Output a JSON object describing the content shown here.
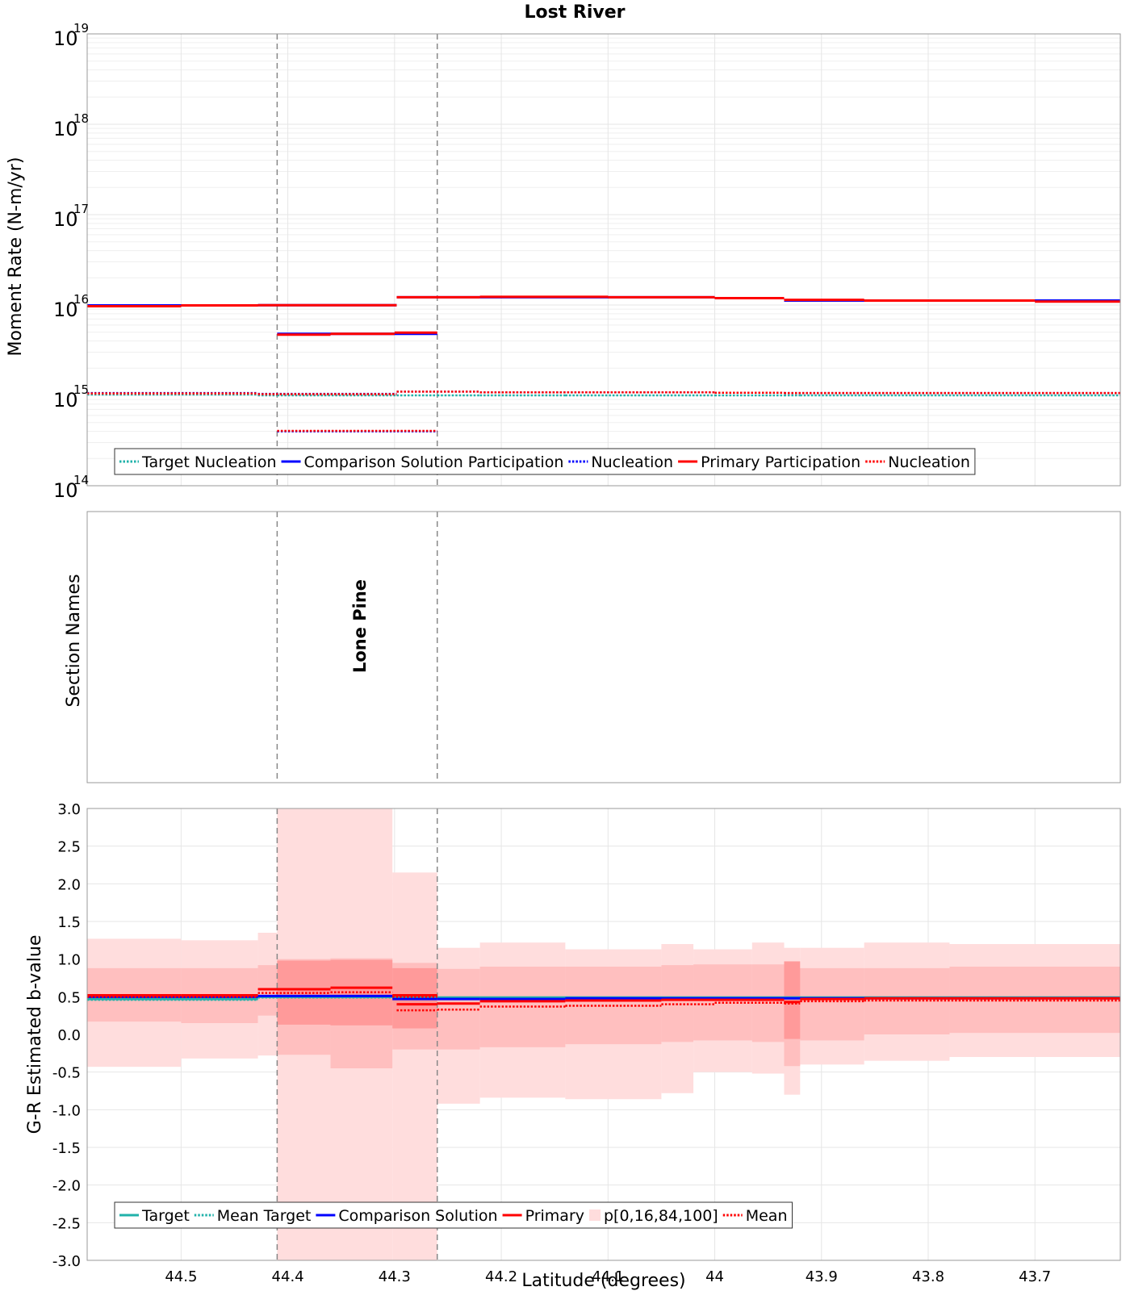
{
  "chart_data": [
    {
      "type": "line",
      "title": "Lost River",
      "ylabel": "Moment Rate (N-m/yr)",
      "xlabel": "",
      "yscale": "log",
      "ylim": [
        100000000000000.0,
        1e+19
      ],
      "xlim": [
        44.588,
        43.62
      ],
      "x_reversed": true,
      "grid": true,
      "legend_position": "bottom-left",
      "y_tick_labels": [
        {
          "base": "10",
          "exp": "19",
          "value": 1e+19
        },
        {
          "base": "10",
          "exp": "18",
          "value": 1e+18
        },
        {
          "base": "10",
          "exp": "17",
          "value": 1e+17
        },
        {
          "base": "10",
          "exp": "16",
          "value": 1e+16
        },
        {
          "base": "10",
          "exp": "15",
          "value": 1000000000000000.0
        },
        {
          "base": "10",
          "exp": "14",
          "value": 100000000000000.0
        }
      ],
      "legend": [
        "Target Nucleation",
        "Comparison Solution Participation",
        "Nucleation",
        "Primary Participation",
        "Nucleation"
      ],
      "series": [
        {
          "name": "Target Nucleation",
          "color": "#20B2AA",
          "style": "dotted",
          "steps": [
            [
              44.588,
              44.428,
              1020000000000000.0
            ],
            [
              44.428,
              44.41,
              1000000000000000.0
            ],
            [
              44.41,
              44.298,
              1000000000000000.0
            ],
            [
              44.298,
              44.26,
              1000000000000000.0
            ],
            [
              44.26,
              44.22,
              1000000000000000.0
            ],
            [
              44.22,
              44.14,
              1000000000000000.0
            ],
            [
              44.14,
              44.0,
              1000000000000000.0
            ],
            [
              44.0,
              43.935,
              1000000000000000.0
            ],
            [
              43.935,
              43.92,
              1000000000000000.0
            ],
            [
              43.92,
              43.62,
              1000000000000000.0
            ]
          ]
        },
        {
          "name": "Nucleation",
          "color": "#0000FF",
          "style": "dotted",
          "steps": [
            [
              44.588,
              44.428,
              1060000000000000.0
            ],
            [
              44.428,
              44.298,
              1040000000000000.0
            ],
            [
              44.41,
              44.26,
              400000000000000.0
            ],
            [
              44.298,
              44.22,
              1100000000000000.0
            ],
            [
              44.22,
              44.0,
              1080000000000000.0
            ],
            [
              44.0,
              43.935,
              1070000000000000.0
            ],
            [
              43.935,
              43.62,
              1060000000000000.0
            ]
          ]
        },
        {
          "name": "Comparison Solution Participation",
          "color": "#0000FF",
          "style": "solid",
          "steps": [
            [
              44.588,
              44.428,
              9900000000000000.0
            ],
            [
              44.428,
              44.298,
              9950000000000000.0
            ],
            [
              44.41,
              44.26,
              4800000000000000.0
            ],
            [
              44.298,
              44.22,
              1.22e+16
            ],
            [
              44.22,
              44.0,
              1.22e+16
            ],
            [
              44.0,
              43.935,
              1.19e+16
            ],
            [
              43.935,
              43.62,
              1.12e+16
            ]
          ]
        },
        {
          "name": "Primary Participation",
          "color": "#FF0000",
          "style": "solid",
          "steps": [
            [
              44.588,
              44.5,
              9700000000000000.0
            ],
            [
              44.5,
              44.428,
              9900000000000000.0
            ],
            [
              44.428,
              44.298,
              9950000000000000.0
            ],
            [
              44.41,
              44.36,
              4700000000000000.0
            ],
            [
              44.36,
              44.3,
              4800000000000000.0
            ],
            [
              44.3,
              44.26,
              4950000000000000.0
            ],
            [
              44.298,
              44.22,
              1.22e+16
            ],
            [
              44.22,
              44.1,
              1.23e+16
            ],
            [
              44.1,
              44.0,
              1.22e+16
            ],
            [
              44.0,
              43.935,
              1.19e+16
            ],
            [
              43.935,
              43.86,
              1.14e+16
            ],
            [
              43.86,
              43.7,
              1.12e+16
            ],
            [
              43.7,
              43.62,
              1.09e+16
            ]
          ]
        },
        {
          "name": "Nucleation",
          "color": "#FF0000",
          "style": "dotted",
          "steps": [
            [
              44.588,
              44.428,
              1050000000000000.0
            ],
            [
              44.428,
              44.298,
              1030000000000000.0
            ],
            [
              44.41,
              44.26,
              405000000000000.0
            ],
            [
              44.298,
              44.22,
              1100000000000000.0
            ],
            [
              44.22,
              44.0,
              1080000000000000.0
            ],
            [
              44.0,
              43.935,
              1070000000000000.0
            ],
            [
              43.935,
              43.62,
              1060000000000000.0
            ]
          ]
        }
      ]
    },
    {
      "type": "table",
      "ylabel": "Section Names",
      "section_boundaries": [
        44.41,
        44.26
      ],
      "sections": [
        {
          "name": "Lone Pine",
          "x": 44.333
        }
      ]
    },
    {
      "type": "line",
      "ylabel": "G-R Estimated b-value",
      "xlabel": "Latitude (degrees)",
      "ylim": [
        -3.0,
        3.0
      ],
      "xlim": [
        44.588,
        43.62
      ],
      "x_reversed": true,
      "grid": true,
      "legend_position": "bottom-left",
      "x_ticks": [
        "44.5",
        "44.4",
        "44.3",
        "44.2",
        "44.1",
        "44",
        "43.9",
        "43.8",
        "43.7"
      ],
      "y_ticks": [
        "3.0",
        "2.5",
        "2.0",
        "1.5",
        "1.0",
        "0.5",
        "0.0",
        "-0.5",
        "-1.0",
        "-1.5",
        "-2.0",
        "-2.5",
        "-3.0"
      ],
      "legend": [
        "Target",
        "Mean Target",
        "Comparison Solution",
        "Primary",
        "p[0,16,84,100]",
        "Mean"
      ],
      "bands_outer": [
        [
          44.588,
          44.5,
          -0.43,
          1.27
        ],
        [
          44.5,
          44.428,
          -0.32,
          1.25
        ],
        [
          44.428,
          44.41,
          -0.28,
          1.35
        ],
        [
          44.41,
          44.36,
          -3.0,
          3.0
        ],
        [
          44.36,
          44.302,
          -3.0,
          3.0
        ],
        [
          44.302,
          44.26,
          -3.0,
          2.15
        ],
        [
          44.26,
          44.22,
          -0.92,
          1.15
        ],
        [
          44.22,
          44.14,
          -0.84,
          1.22
        ],
        [
          44.14,
          44.05,
          -0.86,
          1.13
        ],
        [
          44.05,
          44.02,
          -0.78,
          1.2
        ],
        [
          44.02,
          43.965,
          -0.5,
          1.13
        ],
        [
          43.965,
          43.935,
          -0.52,
          1.22
        ],
        [
          43.935,
          43.92,
          -0.8,
          1.15
        ],
        [
          43.92,
          43.86,
          -0.4,
          1.15
        ],
        [
          43.86,
          43.78,
          -0.35,
          1.22
        ],
        [
          43.78,
          43.62,
          -0.3,
          1.2
        ]
      ],
      "bands_inner": [
        [
          44.588,
          44.5,
          0.17,
          0.88
        ],
        [
          44.5,
          44.428,
          0.15,
          0.88
        ],
        [
          44.428,
          44.41,
          0.25,
          0.92
        ],
        [
          44.41,
          44.36,
          -0.27,
          1.0
        ],
        [
          44.36,
          44.302,
          -0.45,
          1.01
        ],
        [
          44.302,
          44.26,
          -0.2,
          0.95
        ],
        [
          44.26,
          44.22,
          -0.2,
          0.87
        ],
        [
          44.22,
          44.14,
          -0.17,
          0.9
        ],
        [
          44.14,
          44.05,
          -0.13,
          0.9
        ],
        [
          44.05,
          44.02,
          -0.1,
          0.92
        ],
        [
          44.02,
          43.965,
          -0.08,
          0.93
        ],
        [
          43.965,
          43.935,
          -0.1,
          0.93
        ],
        [
          43.935,
          43.92,
          -0.42,
          0.88
        ],
        [
          43.92,
          43.86,
          -0.08,
          0.88
        ],
        [
          43.86,
          43.78,
          0.0,
          0.88
        ],
        [
          43.78,
          43.62,
          0.02,
          0.9
        ]
      ],
      "bands_core": [
        [
          44.41,
          44.36,
          0.13,
          0.98
        ],
        [
          44.36,
          44.302,
          0.12,
          0.99
        ],
        [
          44.302,
          44.26,
          0.08,
          0.88
        ],
        [
          43.935,
          43.92,
          -0.06,
          0.97
        ]
      ],
      "series": [
        {
          "name": "Target",
          "color": "#20B2AA",
          "style": "solid",
          "steps": [
            [
              44.588,
              44.428,
              0.47
            ],
            [
              44.428,
              44.26,
              0.5
            ],
            [
              44.26,
              43.62,
              0.49
            ]
          ]
        },
        {
          "name": "Mean Target",
          "color": "#20B2AA",
          "style": "dotted",
          "steps": [
            [
              44.588,
              44.428,
              0.46
            ],
            [
              44.428,
              44.26,
              0.49
            ],
            [
              44.26,
              43.62,
              0.48
            ]
          ]
        },
        {
          "name": "Comparison Solution",
          "color": "#0000FF",
          "style": "solid",
          "steps": [
            [
              44.588,
              44.428,
              0.5
            ],
            [
              44.428,
              44.302,
              0.51
            ],
            [
              44.302,
              44.26,
              0.47
            ],
            [
              44.26,
              44.22,
              0.47
            ],
            [
              44.22,
              44.14,
              0.47
            ],
            [
              44.14,
              44.0,
              0.48
            ],
            [
              44.0,
              43.62,
              0.48
            ]
          ]
        },
        {
          "name": "Primary",
          "color": "#FF0000",
          "style": "solid",
          "steps": [
            [
              44.588,
              44.5,
              0.52
            ],
            [
              44.5,
              44.428,
              0.52
            ],
            [
              44.428,
              44.36,
              0.6
            ],
            [
              44.36,
              44.302,
              0.62
            ],
            [
              44.302,
              44.26,
              0.52
            ],
            [
              44.298,
              44.26,
              0.4
            ],
            [
              44.26,
              44.22,
              0.41
            ],
            [
              44.22,
              44.14,
              0.44
            ],
            [
              44.14,
              44.05,
              0.45
            ],
            [
              44.05,
              44.0,
              0.46
            ],
            [
              44.0,
              43.935,
              0.46
            ],
            [
              43.935,
              43.92,
              0.43
            ],
            [
              43.92,
              43.86,
              0.47
            ],
            [
              43.86,
              43.62,
              0.48
            ]
          ]
        },
        {
          "name": "Mean",
          "color": "#FF0000",
          "style": "dotted",
          "steps": [
            [
              44.588,
              44.428,
              0.5
            ],
            [
              44.428,
              44.36,
              0.55
            ],
            [
              44.36,
              44.302,
              0.56
            ],
            [
              44.302,
              44.26,
              0.5
            ],
            [
              44.298,
              44.26,
              0.32
            ],
            [
              44.26,
              44.22,
              0.33
            ],
            [
              44.22,
              44.14,
              0.37
            ],
            [
              44.14,
              44.05,
              0.38
            ],
            [
              44.05,
              44.0,
              0.4
            ],
            [
              44.0,
              43.935,
              0.42
            ],
            [
              43.935,
              43.92,
              0.41
            ],
            [
              43.92,
              43.86,
              0.44
            ],
            [
              43.86,
              43.62,
              0.45
            ]
          ]
        }
      ]
    }
  ],
  "colors": {
    "target": "#20B2AA",
    "comparison": "#0000FF",
    "primary": "#FF0000",
    "band_outer": "#FFDDDD",
    "band_inner": "#FFBFBF",
    "band_core": "#FF9A9A"
  }
}
